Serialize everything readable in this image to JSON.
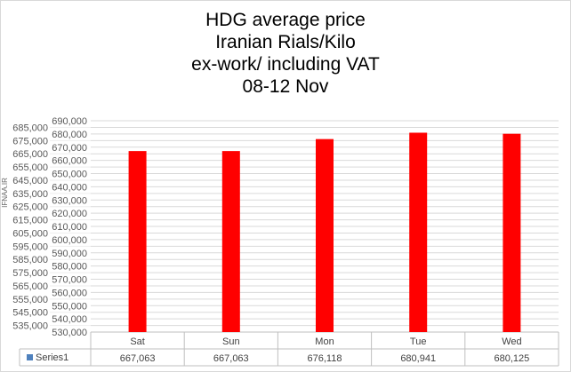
{
  "chart_data": {
    "type": "bar",
    "title": [
      "HDG average price",
      "Iranian Rials/Kilo",
      "ex-work/ including VAT",
      "08-12 Nov"
    ],
    "categories": [
      "Sat",
      "Sun",
      "Mon",
      "Tue",
      "Wed"
    ],
    "series": [
      {
        "name": "Series1",
        "values": [
          667063,
          667063,
          676118,
          680941,
          680125
        ],
        "labels": [
          "667,063",
          "667,063",
          "676,118",
          "680,941",
          "680,125"
        ],
        "color": "#ff0000"
      }
    ],
    "ylim": [
      530000,
      690000
    ],
    "ytick_step": 5000,
    "grid": true,
    "legend": "data-table",
    "legend_key_color": "#4f81bd",
    "watermark": "IFNAA.IR"
  }
}
